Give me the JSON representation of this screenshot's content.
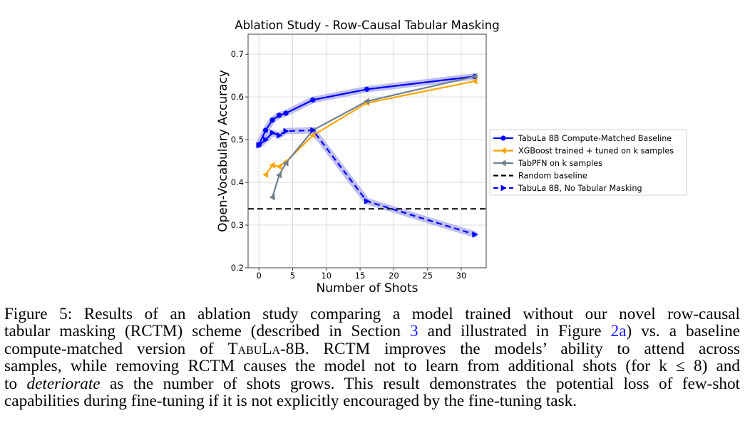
{
  "chart_data": {
    "type": "line",
    "title": "Ablation Study - Row-Causal Tabular Masking",
    "xlabel": "Number of Shots",
    "ylabel": "Open-Vocabulary Accuracy",
    "xlim": [
      -1.6,
      33.7
    ],
    "ylim": [
      0.2,
      0.747
    ],
    "xticks": [
      0,
      5,
      10,
      15,
      20,
      25,
      30
    ],
    "xtick_labels": [
      "0",
      "5",
      "10",
      "15",
      "20",
      "25",
      "30"
    ],
    "yticks": [
      0.2,
      0.3,
      0.4,
      0.5,
      0.6,
      0.7
    ],
    "ytick_labels": [
      "0.2",
      "0.3",
      "0.4",
      "0.5",
      "0.6",
      "0.7"
    ],
    "grid": true,
    "legend_position": "right-outside",
    "series": [
      {
        "name": "TabuLa 8B Compute-Matched Baseline",
        "color": "#0000ff",
        "linestyle": "solid",
        "marker": "circle",
        "band": true,
        "x": [
          0,
          1,
          2,
          3,
          4,
          8,
          16,
          32
        ],
        "y": [
          0.488,
          0.522,
          0.546,
          0.557,
          0.562,
          0.593,
          0.618,
          0.648
        ]
      },
      {
        "name": "XGBoost trained + tuned on k samples",
        "color": "#ffa500",
        "linestyle": "solid",
        "marker": "triangle-left",
        "band": false,
        "x": [
          1,
          2,
          3,
          4,
          8,
          16,
          32
        ],
        "y": [
          0.418,
          0.44,
          0.437,
          0.448,
          0.51,
          0.586,
          0.637
        ]
      },
      {
        "name": "TabPFN on k samples",
        "color": "#708090",
        "linestyle": "solid",
        "marker": "triangle-left",
        "band": false,
        "x": [
          2,
          3,
          4,
          8,
          16,
          32
        ],
        "y": [
          0.365,
          0.417,
          0.445,
          0.522,
          0.59,
          0.648
        ]
      },
      {
        "name": "Random baseline",
        "color": "#000000",
        "linestyle": "dashed",
        "marker": "none",
        "band": false,
        "hline": 0.338
      },
      {
        "name": "TabuLa 8B, No Tabular Masking",
        "color": "#0000ff",
        "linestyle": "dashed",
        "marker": "triangle-right",
        "band": true,
        "x": [
          0,
          1,
          2,
          3,
          4,
          8,
          16,
          32
        ],
        "y": [
          0.487,
          0.5,
          0.516,
          0.51,
          0.52,
          0.522,
          0.356,
          0.278
        ]
      }
    ]
  },
  "caption": {
    "line1": "Figure 5: Results of an ablation study comparing a model trained without our novel row-causal",
    "line2_a": "tabular masking (RCTM) scheme (described in Section ",
    "line2_ref1": "3",
    "line2_b": " and illustrated in Figure ",
    "line2_ref2": "2a",
    "line2_c": ") vs. a baseline",
    "line3_a": "compute-matched version of ",
    "line3_model": "TabuLa",
    "line3_b": "-8B. RCTM improves the models’ ability to attend across",
    "line4": "samples, while removing RCTM causes the model not to learn from additional shots (for k ≤ 8) and",
    "line5_a": "to ",
    "line5_em": "deteriorate",
    "line5_b": " as the number of shots grows. This result demonstrates the potential loss of few-shot",
    "line6": "capabilities during fine-tuning if it is not explicitly encouraged by the fine-tuning task."
  }
}
